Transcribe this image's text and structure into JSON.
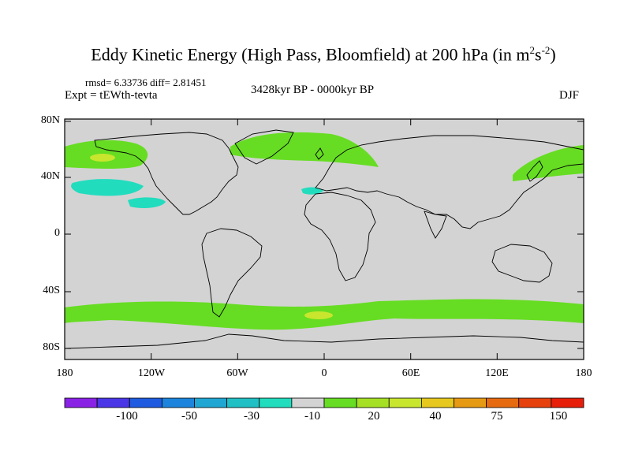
{
  "figure": {
    "title": "Eddy Kinetic Energy (High Pass, Bloomfield) at 200 hPa (in m",
    "title_unit_sup1": "2",
    "title_unit_s": "s",
    "title_unit_sup2": "-2",
    "title_close": ")",
    "stats": "rmsd= 6.33736 diff= 2.81451",
    "expt": "Expt = tEWth-tevta",
    "period": "3428kyr BP - 0000kyr BP",
    "season": "DJF"
  },
  "colors": {
    "land_ocean_background": "#d3d3d3",
    "positive_band": "#66dd22",
    "strong_positive": "#c8e62e",
    "negative_band": "#22dcbe",
    "coastline": "#000000"
  },
  "axes": {
    "y_ticks": [
      "80N",
      "40N",
      "0",
      "40S",
      "80S"
    ],
    "x_ticks": [
      "180",
      "120W",
      "60W",
      "0",
      "60E",
      "120E",
      "180"
    ]
  },
  "colorbar": {
    "labels": [
      "-100",
      "-50",
      "-30",
      "-10",
      "20",
      "40",
      "75",
      "150"
    ],
    "colors": [
      "#8a22e6",
      "#4a36e6",
      "#1f5be0",
      "#1c84dc",
      "#1fa6d2",
      "#20c0c4",
      "#22dcbe",
      "#d3d3d3",
      "#66dd22",
      "#a6e024",
      "#c8e62e",
      "#e6c81e",
      "#e69a14",
      "#e66a10",
      "#e6400c",
      "#e61e0a"
    ]
  },
  "map_data": {
    "projection": "cylindrical equidistant",
    "lon_range": [
      -180,
      180
    ],
    "lat_range": [
      -90,
      90
    ],
    "positive_anomaly_regions": [
      "North Pacific jet exit (~160W-130W, 45-65N)",
      "North Atlantic / Greenland (~60W-30E, 45-70N)",
      "Northwest Pacific / Japan (~130E-180, 35-60N)",
      "Southern Ocean band (~180W-180E, 45-65S)"
    ],
    "negative_anomaly_regions": [
      "Subtropical NE Pacific (~170W-130W, 25-40N)",
      "Subtropical NE Pacific (~135W-120W, 20-27N)",
      "Eastern subtropical Atlantic (~15W-0, 28-33N)"
    ]
  }
}
